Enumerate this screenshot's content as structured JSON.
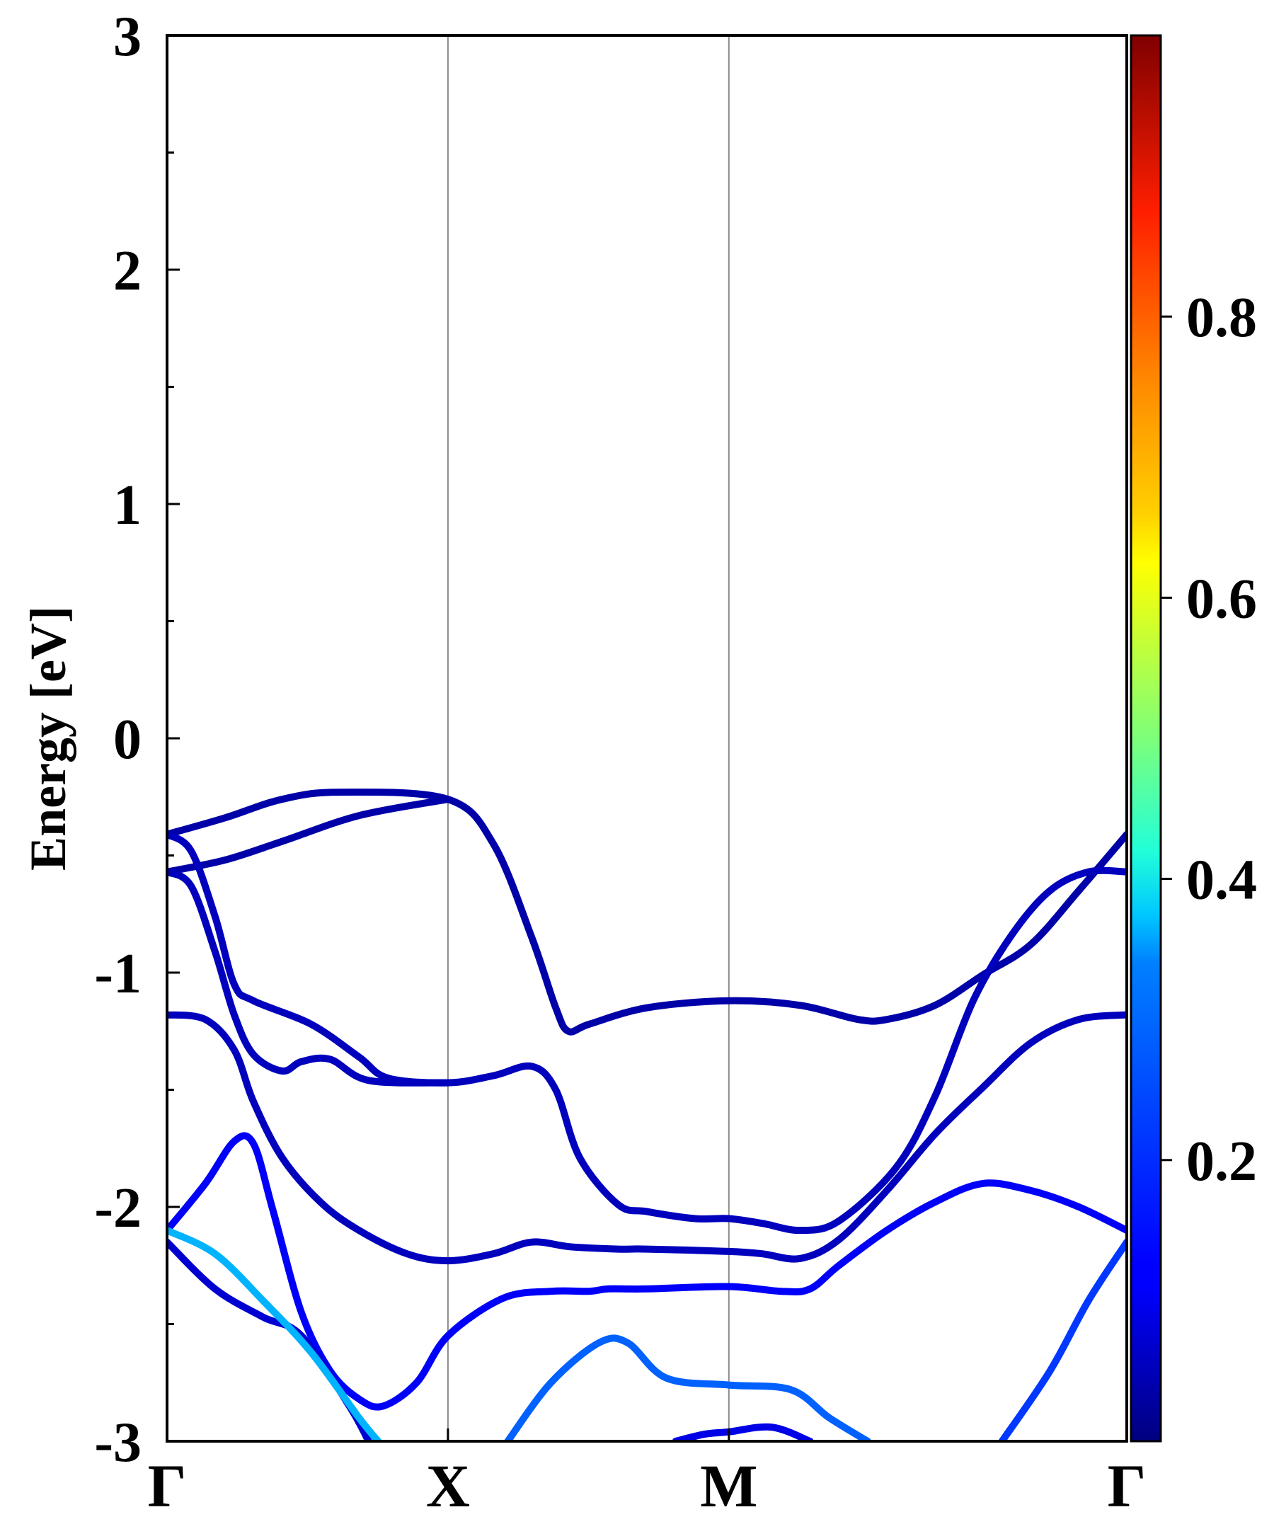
{
  "chart_data": {
    "type": "line",
    "ylabel": "Energy [eV]",
    "ylim": [
      -3,
      3
    ],
    "y_ticks": [
      3,
      2,
      1,
      0,
      -1,
      -2,
      -3
    ],
    "y_tick_labels": [
      "3",
      "2",
      "1",
      "0",
      "-1",
      "-2",
      "-3"
    ],
    "xlim": [
      0,
      1
    ],
    "x_ticks": [
      0,
      0.2927,
      0.5854,
      1
    ],
    "x_tick_labels": [
      "Γ",
      "X",
      "M",
      "Γ"
    ],
    "vertical_lines_at": [
      0.2927,
      0.5854
    ],
    "grid": false,
    "colorbar": {
      "colormap": "jet",
      "range": [
        0,
        1
      ],
      "ticks": [
        0.2,
        0.4,
        0.6,
        0.8
      ],
      "tick_labels": [
        "0.2",
        "0.4",
        "0.6",
        "0.8"
      ]
    },
    "series": [
      {
        "color_value": 0.04,
        "points": [
          [
            0,
            -0.41
          ],
          [
            0.06,
            -0.34
          ],
          [
            0.12,
            -0.26
          ],
          [
            0.18,
            -0.23
          ],
          [
            0.2927,
            -0.26
          ],
          [
            0.34,
            -0.45
          ],
          [
            0.38,
            -0.85
          ],
          [
            0.405,
            -1.15
          ],
          [
            0.418,
            -1.25
          ],
          [
            0.44,
            -1.22
          ],
          [
            0.5,
            -1.15
          ],
          [
            0.5854,
            -1.12
          ],
          [
            0.66,
            -1.14
          ],
          [
            0.72,
            -1.2
          ],
          [
            0.75,
            -1.2
          ],
          [
            0.8,
            -1.14
          ],
          [
            0.85,
            -1.01
          ],
          [
            0.9,
            -0.88
          ],
          [
            0.95,
            -0.65
          ],
          [
            1,
            -0.41
          ]
        ]
      },
      {
        "color_value": 0.04,
        "points": [
          [
            0,
            -0.57
          ],
          [
            0.06,
            -0.52
          ],
          [
            0.12,
            -0.44
          ],
          [
            0.2,
            -0.33
          ],
          [
            0.2927,
            -0.26
          ]
        ]
      },
      {
        "color_value": 0.06,
        "points": [
          [
            0,
            -0.41
          ],
          [
            0.025,
            -0.48
          ],
          [
            0.05,
            -0.76
          ],
          [
            0.07,
            -1.05
          ],
          [
            0.09,
            -1.12
          ],
          [
            0.15,
            -1.22
          ],
          [
            0.2,
            -1.36
          ],
          [
            0.23,
            -1.45
          ],
          [
            0.2927,
            -1.47
          ],
          [
            0.34,
            -1.44
          ],
          [
            0.38,
            -1.4
          ],
          [
            0.405,
            -1.5
          ],
          [
            0.43,
            -1.79
          ],
          [
            0.47,
            -1.99
          ],
          [
            0.5,
            -2.02
          ],
          [
            0.55,
            -2.05
          ],
          [
            0.5854,
            -2.05
          ],
          [
            0.62,
            -2.07
          ],
          [
            0.66,
            -2.1
          ],
          [
            0.7,
            -2.06
          ],
          [
            0.76,
            -1.83
          ],
          [
            0.8,
            -1.53
          ],
          [
            0.84,
            -1.12
          ],
          [
            0.88,
            -0.84
          ],
          [
            0.92,
            -0.65
          ],
          [
            0.96,
            -0.57
          ],
          [
            1,
            -0.57
          ]
        ]
      },
      {
        "color_value": 0.06,
        "points": [
          [
            0,
            -0.57
          ],
          [
            0.025,
            -0.63
          ],
          [
            0.05,
            -0.91
          ],
          [
            0.07,
            -1.18
          ],
          [
            0.09,
            -1.35
          ],
          [
            0.12,
            -1.42
          ],
          [
            0.14,
            -1.38
          ],
          [
            0.17,
            -1.37
          ],
          [
            0.21,
            -1.46
          ],
          [
            0.2927,
            -1.47
          ]
        ]
      },
      {
        "color_value": 0.06,
        "points": [
          [
            0,
            -1.18
          ],
          [
            0.04,
            -1.2
          ],
          [
            0.07,
            -1.33
          ],
          [
            0.09,
            -1.55
          ],
          [
            0.12,
            -1.79
          ],
          [
            0.16,
            -1.98
          ],
          [
            0.2,
            -2.1
          ],
          [
            0.25,
            -2.2
          ],
          [
            0.2927,
            -2.23
          ],
          [
            0.34,
            -2.2
          ],
          [
            0.38,
            -2.15
          ],
          [
            0.42,
            -2.17
          ],
          [
            0.47,
            -2.18
          ],
          [
            0.5,
            -2.18
          ],
          [
            0.5854,
            -2.19
          ],
          [
            0.62,
            -2.2
          ],
          [
            0.66,
            -2.22
          ],
          [
            0.7,
            -2.14
          ],
          [
            0.75,
            -1.93
          ],
          [
            0.8,
            -1.69
          ],
          [
            0.85,
            -1.49
          ],
          [
            0.9,
            -1.3
          ],
          [
            0.95,
            -1.2
          ],
          [
            1,
            -1.18
          ]
        ]
      },
      {
        "color_value": 0.12,
        "points": [
          [
            0,
            -2.1
          ],
          [
            0.04,
            -1.9
          ],
          [
            0.07,
            -1.72
          ],
          [
            0.09,
            -1.73
          ],
          [
            0.11,
            -2.01
          ],
          [
            0.14,
            -2.45
          ],
          [
            0.17,
            -2.7
          ],
          [
            0.2,
            -2.82
          ],
          [
            0.225,
            -2.85
          ],
          [
            0.26,
            -2.75
          ],
          [
            0.2927,
            -2.55
          ],
          [
            0.35,
            -2.39
          ],
          [
            0.4,
            -2.36
          ],
          [
            0.44,
            -2.36
          ],
          [
            0.46,
            -2.35
          ],
          [
            0.5,
            -2.35
          ],
          [
            0.5854,
            -2.34
          ],
          [
            0.64,
            -2.36
          ],
          [
            0.67,
            -2.35
          ],
          [
            0.7,
            -2.25
          ],
          [
            0.75,
            -2.1
          ],
          [
            0.8,
            -1.98
          ],
          [
            0.85,
            -1.9
          ],
          [
            0.9,
            -1.93
          ],
          [
            0.95,
            -2.0
          ],
          [
            1,
            -2.1
          ]
        ]
      },
      {
        "color_value": 0.08,
        "points": [
          [
            0,
            -2.15
          ],
          [
            0.05,
            -2.35
          ],
          [
            0.1,
            -2.47
          ],
          [
            0.14,
            -2.55
          ],
          [
            0.19,
            -2.85
          ],
          [
            0.21,
            -3.0
          ]
        ]
      },
      {
        "color_value": 0.3,
        "points": [
          [
            0,
            -2.1
          ],
          [
            0.05,
            -2.2
          ],
          [
            0.1,
            -2.4
          ],
          [
            0.15,
            -2.62
          ],
          [
            0.2,
            -2.9
          ],
          [
            0.22,
            -3.0
          ]
        ]
      },
      {
        "color_value": 0.22,
        "points": [
          [
            0.355,
            -3.0
          ],
          [
            0.4,
            -2.75
          ],
          [
            0.45,
            -2.58
          ],
          [
            0.48,
            -2.58
          ],
          [
            0.52,
            -2.73
          ],
          [
            0.5854,
            -2.76
          ],
          [
            0.65,
            -2.78
          ],
          [
            0.69,
            -2.9
          ],
          [
            0.73,
            -3.0
          ]
        ]
      },
      {
        "color_value": 0.1,
        "points": [
          [
            0.53,
            -3.0
          ],
          [
            0.56,
            -2.97
          ],
          [
            0.5854,
            -2.96
          ],
          [
            0.63,
            -2.94
          ],
          [
            0.67,
            -3.0
          ]
        ]
      },
      {
        "color_value": 0.18,
        "points": [
          [
            0.87,
            -3.0
          ],
          [
            0.92,
            -2.7
          ],
          [
            0.96,
            -2.4
          ],
          [
            1,
            -2.15
          ]
        ]
      }
    ]
  }
}
